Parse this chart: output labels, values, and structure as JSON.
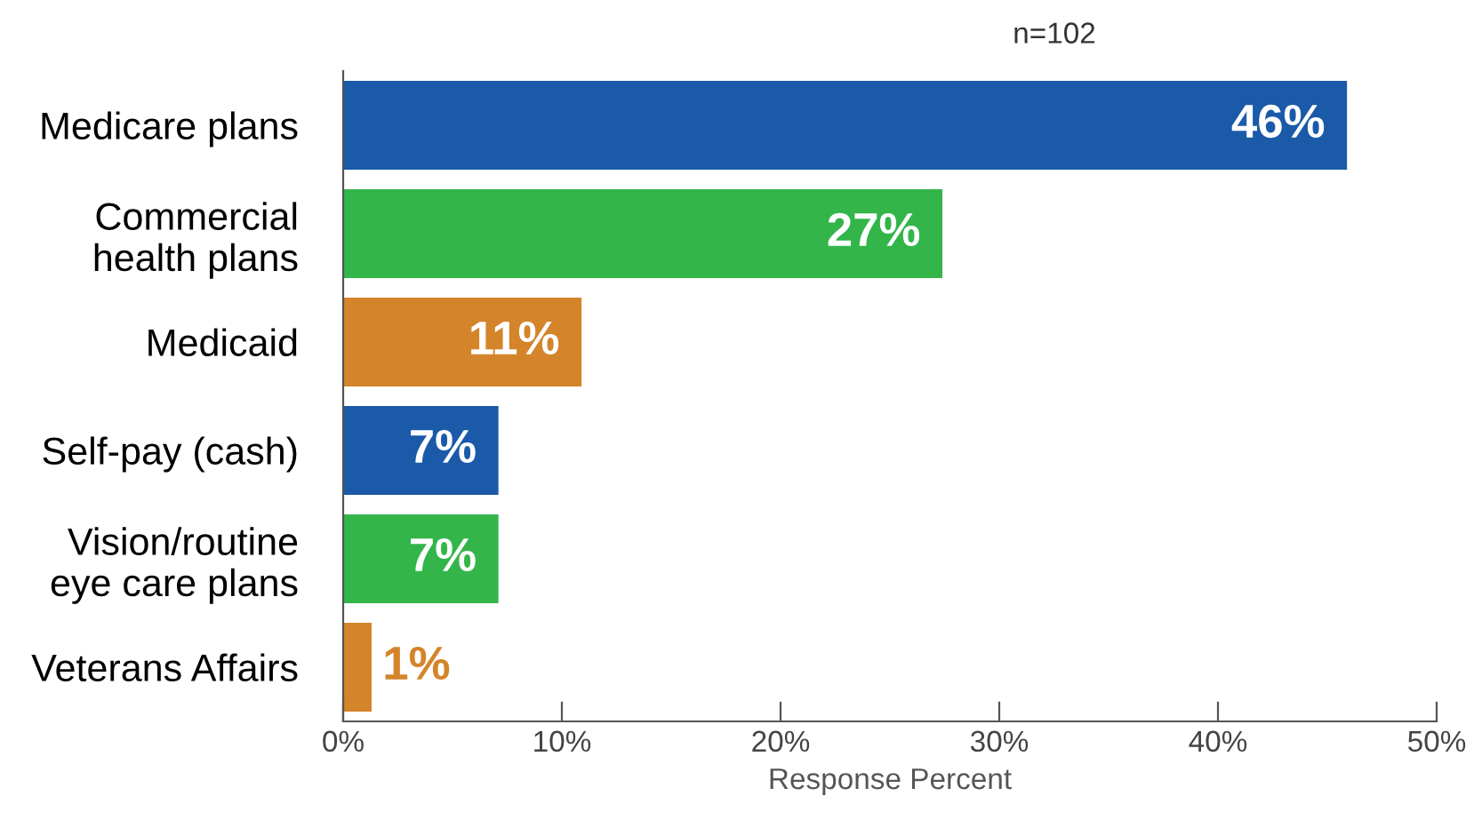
{
  "chart_data": {
    "type": "bar",
    "orientation": "horizontal",
    "subtitle": "n=102",
    "xlabel": "Response Percent",
    "categories": [
      "Medicare plans",
      "Commercial\nhealth plans",
      "Medicaid",
      "Self-pay (cash)",
      "Vision/routine\neye care plans",
      "Veterans Affairs"
    ],
    "values": [
      45.9,
      27.4,
      10.9,
      7.1,
      7.1,
      1.3
    ],
    "value_labels": [
      "46%",
      "27%",
      "11%",
      "7%",
      "7%",
      "1%"
    ],
    "colors": [
      "#1a5aa8",
      "#33b54a",
      "#d4842a",
      "#1a5aa8",
      "#33b54a",
      "#d4842a"
    ],
    "xlim": [
      0,
      50
    ],
    "xticks": [
      {
        "value": 0,
        "label": "0%"
      },
      {
        "value": 10,
        "label": "10%"
      },
      {
        "value": 20,
        "label": "20%"
      },
      {
        "value": 30,
        "label": "30%"
      },
      {
        "value": 40,
        "label": "40%"
      },
      {
        "value": 50,
        "label": "50%"
      }
    ],
    "grid": false
  }
}
